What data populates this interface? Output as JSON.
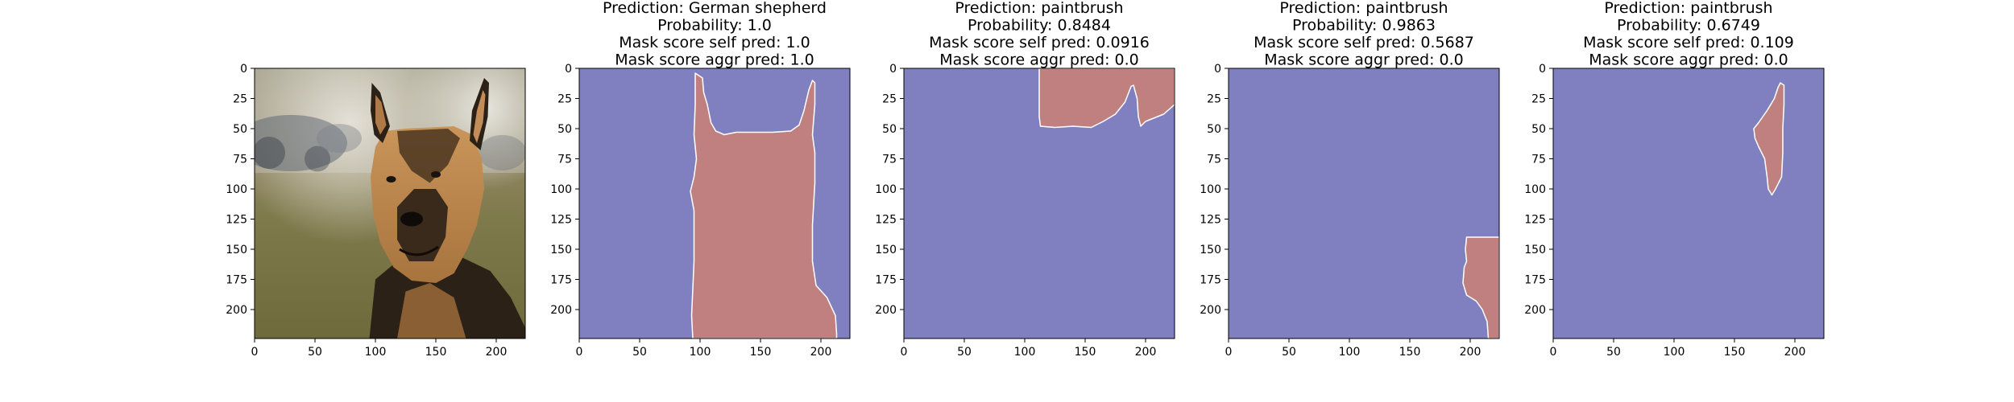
{
  "chart_data": [
    {
      "type": "image",
      "content": "photo",
      "title_lines": [],
      "xticks": [
        "0",
        "50",
        "100",
        "150",
        "200"
      ],
      "yticks": [
        "0",
        "25",
        "50",
        "75",
        "100",
        "125",
        "150",
        "175",
        "200"
      ],
      "xlim": [
        0,
        224
      ],
      "ylim": [
        224,
        0
      ]
    },
    {
      "type": "image",
      "content": "mask",
      "title_lines": [
        "Prediction: German shepherd",
        "Probability: 1.0",
        "Mask score self pred: 1.0",
        "Mask score aggr pred: 1.0"
      ],
      "xticks": [
        "0",
        "50",
        "100",
        "150",
        "200"
      ],
      "yticks": [
        "0",
        "25",
        "50",
        "75",
        "100",
        "125",
        "150",
        "175",
        "200"
      ],
      "xlim": [
        0,
        224
      ],
      "ylim": [
        224,
        0
      ],
      "mask_polygon": [
        [
          96,
          4
        ],
        [
          102,
          8
        ],
        [
          103,
          20
        ],
        [
          106,
          30
        ],
        [
          109,
          45
        ],
        [
          113,
          52
        ],
        [
          120,
          55
        ],
        [
          130,
          53
        ],
        [
          160,
          53
        ],
        [
          175,
          52
        ],
        [
          182,
          47
        ],
        [
          186,
          35
        ],
        [
          190,
          18
        ],
        [
          193,
          10
        ],
        [
          195,
          12
        ],
        [
          195,
          30
        ],
        [
          193,
          55
        ],
        [
          195,
          70
        ],
        [
          195,
          95
        ],
        [
          193,
          130
        ],
        [
          193,
          160
        ],
        [
          196,
          180
        ],
        [
          205,
          190
        ],
        [
          212,
          205
        ],
        [
          213,
          220
        ],
        [
          213,
          224
        ],
        [
          94,
          224
        ],
        [
          93,
          205
        ],
        [
          95,
          160
        ],
        [
          95,
          118
        ],
        [
          92,
          102
        ],
        [
          95,
          90
        ],
        [
          97,
          75
        ],
        [
          95,
          55
        ],
        [
          96,
          30
        ]
      ]
    },
    {
      "type": "image",
      "content": "mask",
      "title_lines": [
        "Prediction: paintbrush",
        "Probability: 0.8484",
        "Mask score self pred: 0.0916",
        "Mask score aggr pred: 0.0"
      ],
      "xticks": [
        "0",
        "50",
        "100",
        "150",
        "200"
      ],
      "yticks": [
        "0",
        "25",
        "50",
        "75",
        "100",
        "125",
        "150",
        "175",
        "200"
      ],
      "xlim": [
        0,
        224
      ],
      "ylim": [
        224,
        0
      ],
      "mask_polygon": [
        [
          112,
          0
        ],
        [
          224,
          0
        ],
        [
          224,
          30
        ],
        [
          215,
          38
        ],
        [
          200,
          44
        ],
        [
          196,
          48
        ],
        [
          194,
          40
        ],
        [
          193,
          25
        ],
        [
          190,
          14
        ],
        [
          188,
          15
        ],
        [
          183,
          28
        ],
        [
          175,
          38
        ],
        [
          165,
          44
        ],
        [
          155,
          49
        ],
        [
          140,
          48
        ],
        [
          125,
          49
        ],
        [
          113,
          48
        ],
        [
          112,
          40
        ]
      ]
    },
    {
      "type": "image",
      "content": "mask",
      "title_lines": [
        "Prediction: paintbrush",
        "Probability: 0.9863",
        "Mask score self pred: 0.5687",
        "Mask score aggr pred: 0.0"
      ],
      "xticks": [
        "0",
        "50",
        "100",
        "150",
        "200"
      ],
      "yticks": [
        "0",
        "25",
        "50",
        "75",
        "100",
        "125",
        "150",
        "175",
        "200"
      ],
      "xlim": [
        0,
        224
      ],
      "ylim": [
        224,
        0
      ],
      "mask_polygon": [
        [
          197,
          140
        ],
        [
          210,
          140
        ],
        [
          224,
          140
        ],
        [
          224,
          224
        ],
        [
          215,
          224
        ],
        [
          214,
          210
        ],
        [
          210,
          200
        ],
        [
          205,
          193
        ],
        [
          197,
          188
        ],
        [
          194,
          178
        ],
        [
          195,
          165
        ],
        [
          197,
          160
        ],
        [
          196,
          150
        ]
      ]
    },
    {
      "type": "image",
      "content": "mask",
      "title_lines": [
        "Prediction: paintbrush",
        "Probability: 0.6749",
        "Mask score self pred: 0.109",
        "Mask score aggr pred: 0.0"
      ],
      "xticks": [
        "0",
        "50",
        "100",
        "150",
        "200"
      ],
      "yticks": [
        "0",
        "25",
        "50",
        "75",
        "100",
        "125",
        "150",
        "175",
        "200"
      ],
      "xlim": [
        0,
        224
      ],
      "ylim": [
        224,
        0
      ],
      "mask_polygon": [
        [
          188,
          12
        ],
        [
          191,
          14
        ],
        [
          191,
          30
        ],
        [
          190,
          50
        ],
        [
          190,
          70
        ],
        [
          189,
          90
        ],
        [
          184,
          100
        ],
        [
          181,
          105
        ],
        [
          178,
          100
        ],
        [
          177,
          90
        ],
        [
          175,
          75
        ],
        [
          170,
          65
        ],
        [
          167,
          58
        ],
        [
          166,
          50
        ],
        [
          170,
          45
        ],
        [
          177,
          35
        ],
        [
          183,
          25
        ],
        [
          186,
          16
        ]
      ]
    }
  ],
  "colors": {
    "mask_background": "#8080c1",
    "mask_foreground": "#c08080",
    "mask_edge": "#ffffff",
    "axes_edge": "#000000"
  }
}
